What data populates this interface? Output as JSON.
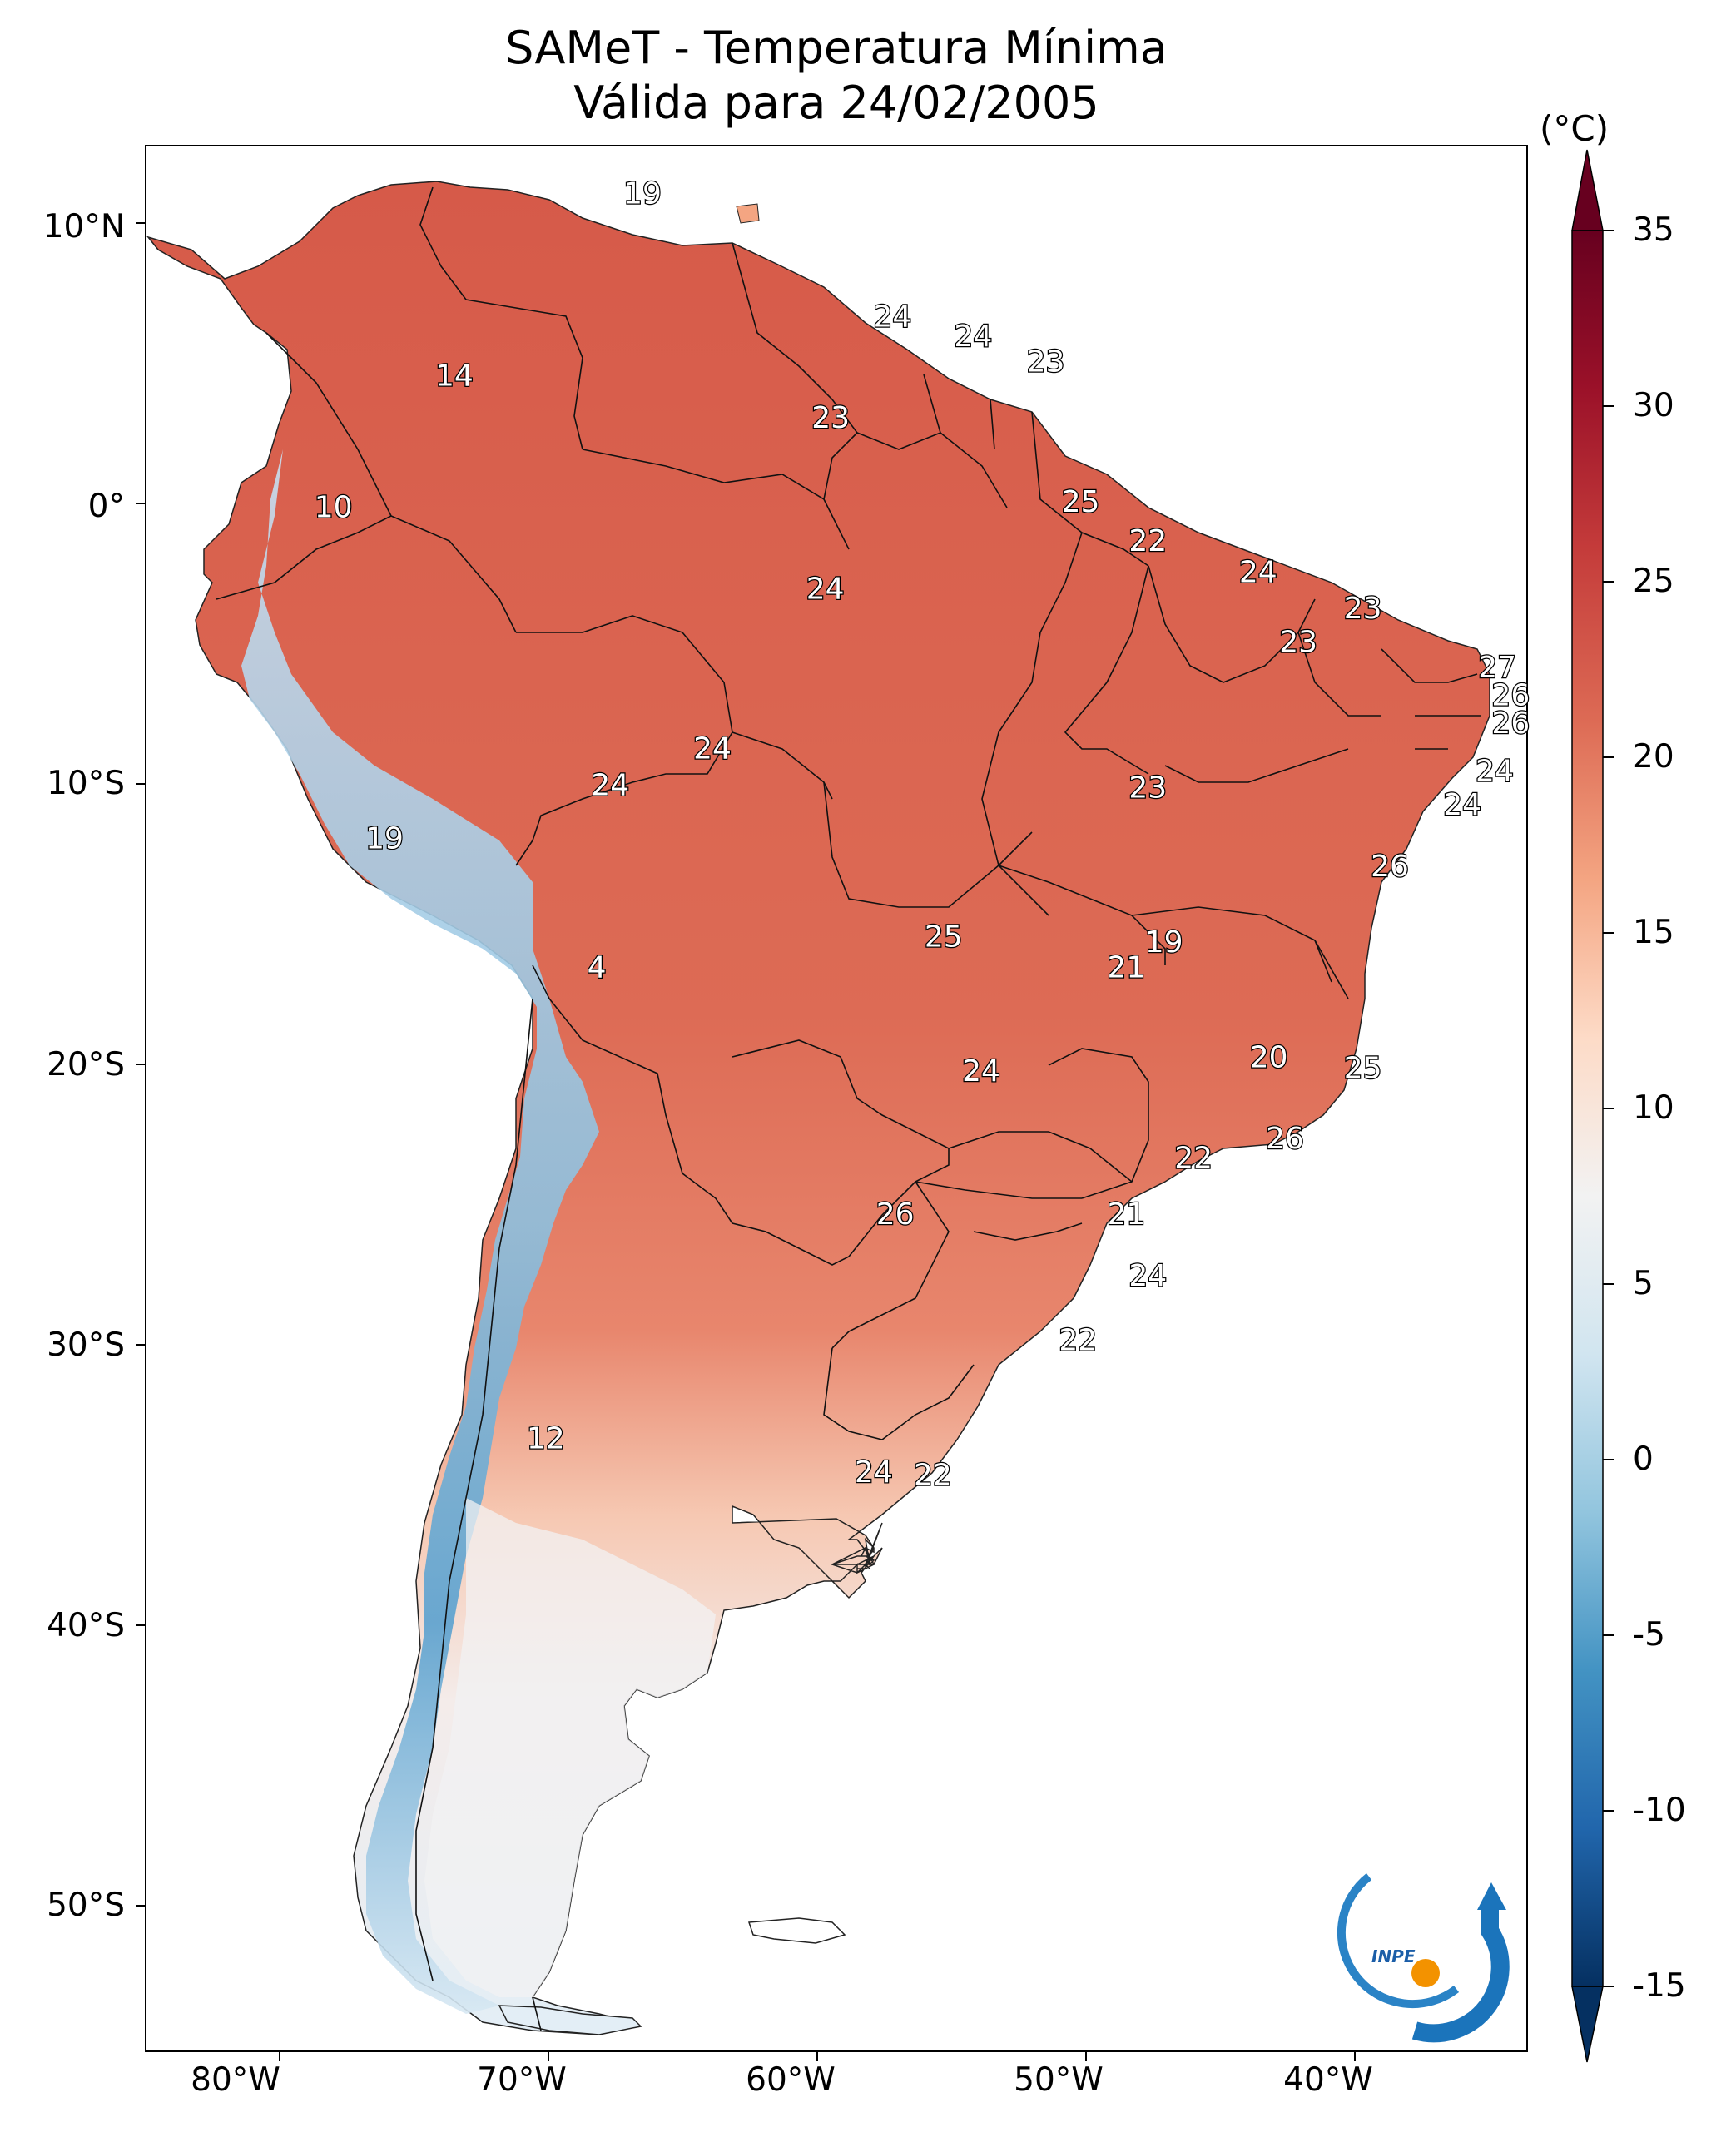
{
  "title": {
    "line1": "SAMeT - Temperatura Mínima",
    "line2": "Válida para 24/02/2005"
  },
  "colorbar": {
    "unit": "(°C)",
    "ticks": [
      "35",
      "30",
      "25",
      "20",
      "15",
      "10",
      "5",
      "0",
      "-5",
      "-10",
      "-15"
    ],
    "min": -15,
    "max": 35,
    "colors_high_to_low": [
      "#67001f",
      "#b2182b",
      "#d6604d",
      "#f4a582",
      "#fddbc7",
      "#f7f7f7",
      "#d1e5f0",
      "#92c5de",
      "#4393c3",
      "#2166ac",
      "#053061"
    ]
  },
  "axes": {
    "lat_labels": [
      "10°N",
      "0°",
      "10°S",
      "20°S",
      "30°S",
      "40°S",
      "50°S"
    ],
    "lon_labels": [
      "80°W",
      "70°W",
      "60°W",
      "50°W",
      "40°W"
    ]
  },
  "map_labels": [
    {
      "value": "19",
      "lon": -66.5,
      "lat": 11.0
    },
    {
      "value": "14",
      "lon": -73.5,
      "lat": 4.5
    },
    {
      "value": "10",
      "lon": -78.0,
      "lat": -0.2
    },
    {
      "value": "24",
      "lon": -57.2,
      "lat": 6.6
    },
    {
      "value": "24",
      "lon": -54.2,
      "lat": 5.9
    },
    {
      "value": "23",
      "lon": -51.5,
      "lat": 5.0
    },
    {
      "value": "23",
      "lon": -59.5,
      "lat": 3.0
    },
    {
      "value": "25",
      "lon": -50.2,
      "lat": 0.0
    },
    {
      "value": "22",
      "lon": -47.7,
      "lat": -1.4
    },
    {
      "value": "24",
      "lon": -59.7,
      "lat": -3.1
    },
    {
      "value": "24",
      "lon": -43.6,
      "lat": -2.5
    },
    {
      "value": "23",
      "lon": -39.7,
      "lat": -3.8
    },
    {
      "value": "23",
      "lon": -42.1,
      "lat": -5.0
    },
    {
      "value": "27",
      "lon": -34.7,
      "lat": -5.9
    },
    {
      "value": "26",
      "lon": -34.2,
      "lat": -6.9
    },
    {
      "value": "26",
      "lon": -34.2,
      "lat": -7.9
    },
    {
      "value": "24",
      "lon": -34.8,
      "lat": -9.6
    },
    {
      "value": "24",
      "lon": -36.0,
      "lat": -10.8
    },
    {
      "value": "24",
      "lon": -63.9,
      "lat": -8.8
    },
    {
      "value": "24",
      "lon": -67.7,
      "lat": -10.1
    },
    {
      "value": "23",
      "lon": -47.7,
      "lat": -10.2
    },
    {
      "value": "19",
      "lon": -76.1,
      "lat": -12.0
    },
    {
      "value": "26",
      "lon": -38.7,
      "lat": -13.0
    },
    {
      "value": "4",
      "lon": -68.2,
      "lat": -16.6
    },
    {
      "value": "25",
      "lon": -55.3,
      "lat": -15.5
    },
    {
      "value": "19",
      "lon": -47.1,
      "lat": -15.7
    },
    {
      "value": "21",
      "lon": -48.5,
      "lat": -16.6
    },
    {
      "value": "20",
      "lon": -43.2,
      "lat": -19.8
    },
    {
      "value": "25",
      "lon": -39.7,
      "lat": -20.2
    },
    {
      "value": "24",
      "lon": -53.9,
      "lat": -20.3
    },
    {
      "value": "26",
      "lon": -42.6,
      "lat": -22.7
    },
    {
      "value": "22",
      "lon": -46.0,
      "lat": -23.4
    },
    {
      "value": "26",
      "lon": -57.1,
      "lat": -25.4
    },
    {
      "value": "21",
      "lon": -48.5,
      "lat": -25.4
    },
    {
      "value": "24",
      "lon": -47.7,
      "lat": -27.6
    },
    {
      "value": "22",
      "lon": -50.3,
      "lat": -29.9
    },
    {
      "value": "12",
      "lon": -70.1,
      "lat": -33.4
    },
    {
      "value": "24",
      "lon": -57.9,
      "lat": -34.6
    },
    {
      "value": "22",
      "lon": -55.7,
      "lat": -34.7
    }
  ],
  "logo": {
    "text": "INPE"
  }
}
